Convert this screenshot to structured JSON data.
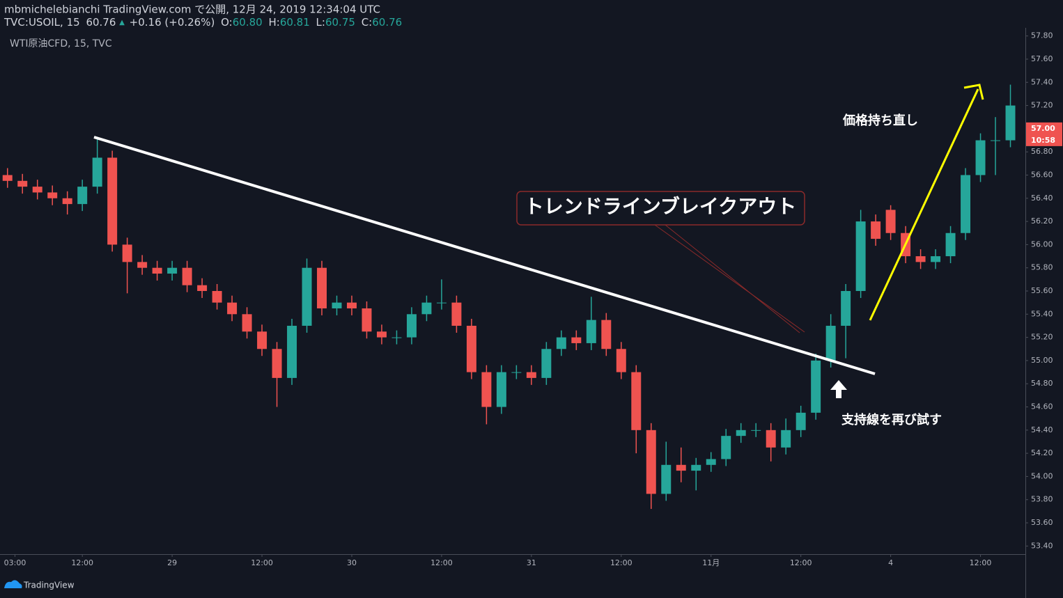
{
  "header": {
    "published": "mbmichelebianchi TradingView.com で公開, 12月 24, 2019 12:34:04 UTC",
    "symbol": "TVC:USOIL, 15",
    "last": "60.76",
    "change": "+0.16 (+0.26%)",
    "open_label": "O:",
    "open": "60.80",
    "high_label": "H:",
    "high": "60.81",
    "low_label": "L:",
    "low": "60.75",
    "close_label": "C:",
    "close": "60.76",
    "instrument": "WTI原油CFD, 15, TVC"
  },
  "annotations": {
    "breakout": "トレンドラインブレイクアウト",
    "recovery": "価格持ち直し",
    "retest": "支持線を再び試す"
  },
  "footer": {
    "brand": "TradingView"
  },
  "chart_data": {
    "type": "candlestick",
    "up_color": "#26a69a",
    "down_color": "#ef5350",
    "x": [
      2,
      4,
      6,
      8,
      10,
      12,
      14,
      16,
      18,
      20,
      22,
      24,
      26,
      28,
      30,
      32,
      34,
      36,
      38,
      40,
      42,
      44,
      46,
      48,
      50,
      52,
      54,
      56,
      58,
      60,
      62,
      64,
      66,
      68,
      70,
      72,
      74,
      76,
      78,
      80,
      82,
      84,
      86,
      88,
      90,
      92,
      94,
      96,
      98,
      100,
      102,
      104,
      106,
      108,
      110,
      112,
      114,
      116,
      118,
      120,
      122,
      124,
      126,
      128,
      130,
      132,
      134,
      136
    ],
    "open": [
      56.6,
      56.55,
      56.5,
      56.45,
      56.4,
      56.35,
      56.5,
      56.75,
      56.0,
      55.85,
      55.8,
      55.75,
      55.8,
      55.65,
      55.6,
      55.5,
      55.4,
      55.25,
      55.1,
      54.85,
      55.3,
      55.8,
      55.45,
      55.5,
      55.45,
      55.25,
      55.2,
      55.2,
      55.4,
      55.5,
      55.5,
      55.3,
      54.9,
      54.6,
      54.9,
      54.9,
      54.85,
      55.1,
      55.2,
      55.15,
      55.35,
      55.1,
      54.9,
      54.4,
      53.85,
      54.1,
      54.05,
      54.1,
      54.15,
      54.35,
      54.4,
      54.4,
      54.25,
      54.4,
      54.55,
      55.0,
      55.3,
      55.6,
      56.2,
      56.3,
      56.1,
      55.9,
      55.85,
      55.9,
      56.1,
      56.6,
      56.9,
      56.9
    ],
    "high": [
      56.66,
      56.61,
      56.56,
      56.51,
      56.46,
      56.56,
      56.92,
      56.81,
      56.06,
      55.91,
      55.86,
      55.86,
      55.86,
      55.71,
      55.66,
      55.56,
      55.46,
      55.31,
      55.16,
      55.36,
      55.88,
      55.86,
      55.56,
      55.56,
      55.51,
      55.31,
      55.26,
      55.46,
      55.56,
      55.7,
      55.56,
      55.36,
      54.96,
      54.96,
      54.96,
      54.96,
      55.16,
      55.26,
      55.26,
      55.55,
      55.41,
      55.16,
      54.96,
      54.46,
      54.3,
      54.25,
      54.16,
      54.21,
      54.41,
      54.46,
      54.46,
      54.46,
      54.5,
      54.61,
      55.06,
      55.4,
      55.66,
      56.3,
      56.26,
      56.34,
      56.16,
      55.96,
      55.96,
      56.16,
      56.66,
      56.96,
      57.1,
      57.38
    ],
    "low": [
      56.49,
      56.44,
      56.39,
      56.34,
      56.26,
      56.29,
      56.44,
      55.94,
      55.58,
      55.74,
      55.69,
      55.69,
      55.59,
      55.54,
      55.44,
      55.34,
      55.19,
      55.04,
      54.6,
      54.79,
      55.24,
      55.39,
      55.39,
      55.39,
      55.19,
      55.14,
      55.14,
      55.14,
      55.34,
      55.44,
      55.24,
      54.84,
      54.45,
      54.54,
      54.84,
      54.79,
      54.79,
      55.04,
      55.09,
      55.09,
      55.04,
      54.84,
      54.2,
      53.72,
      53.79,
      53.95,
      53.88,
      54.04,
      54.09,
      54.29,
      54.34,
      54.13,
      54.19,
      54.34,
      54.49,
      54.94,
      55.02,
      55.54,
      55.99,
      56.04,
      55.84,
      55.79,
      55.79,
      55.84,
      56.04,
      56.54,
      56.6,
      56.84
    ],
    "close": [
      56.55,
      56.5,
      56.45,
      56.4,
      56.35,
      56.5,
      56.75,
      56.0,
      55.85,
      55.8,
      55.75,
      55.8,
      55.65,
      55.6,
      55.5,
      55.4,
      55.25,
      55.1,
      54.85,
      55.3,
      55.8,
      55.45,
      55.5,
      55.45,
      55.25,
      55.2,
      55.2,
      55.4,
      55.5,
      55.5,
      55.3,
      54.9,
      54.6,
      54.9,
      54.9,
      54.85,
      55.1,
      55.2,
      55.15,
      55.35,
      55.1,
      54.9,
      54.4,
      53.85,
      54.1,
      54.05,
      54.1,
      54.15,
      54.35,
      54.4,
      54.4,
      54.25,
      54.4,
      54.55,
      55.0,
      55.3,
      55.6,
      56.2,
      56.05,
      56.1,
      55.9,
      55.85,
      55.9,
      56.1,
      56.6,
      56.9,
      56.9,
      57.2
    ],
    "xlim": [
      1,
      138
    ],
    "xticks": [
      {
        "value": 3,
        "label": "03:00"
      },
      {
        "value": 12,
        "label": "12:00"
      },
      {
        "value": 24,
        "label": "29"
      },
      {
        "value": 36,
        "label": "12:00"
      },
      {
        "value": 48,
        "label": "30"
      },
      {
        "value": 60,
        "label": "12:00"
      },
      {
        "value": 72,
        "label": "31"
      },
      {
        "value": 84,
        "label": "12:00"
      },
      {
        "value": 96,
        "label": "11月"
      },
      {
        "value": 108,
        "label": "12:00"
      },
      {
        "value": 120,
        "label": "4"
      },
      {
        "value": 132,
        "label": "12:00"
      }
    ],
    "ylim": [
      53.33,
      57.87
    ],
    "yticks": [
      {
        "value": 53.4,
        "label": "53.40"
      },
      {
        "value": 53.6,
        "label": "53.60"
      },
      {
        "value": 53.8,
        "label": "53.80"
      },
      {
        "value": 54,
        "label": "54.00"
      },
      {
        "value": 54.2,
        "label": "54.20"
      },
      {
        "value": 54.4,
        "label": "54.40"
      },
      {
        "value": 54.6,
        "label": "54.60"
      },
      {
        "value": 54.8,
        "label": "54.80"
      },
      {
        "value": 55,
        "label": "55.00"
      },
      {
        "value": 55.2,
        "label": "55.20"
      },
      {
        "value": 55.4,
        "label": "55.40"
      },
      {
        "value": 55.6,
        "label": "55.60"
      },
      {
        "value": 55.8,
        "label": "55.80"
      },
      {
        "value": 56,
        "label": "56.00"
      },
      {
        "value": 56.2,
        "label": "56.20"
      },
      {
        "value": 56.4,
        "label": "56.40"
      },
      {
        "value": 56.6,
        "label": "56.60"
      },
      {
        "value": 56.8,
        "label": "56.80"
      },
      {
        "value": 57,
        "label": "57.00"
      },
      {
        "value": 57.2,
        "label": "57.20"
      },
      {
        "value": 57.4,
        "label": "57.40"
      },
      {
        "value": 57.6,
        "label": "57.60"
      },
      {
        "value": 57.8,
        "label": "57.80"
      }
    ],
    "last_price": {
      "value": 57,
      "label": "57.00"
    },
    "countdown": "10:58"
  }
}
